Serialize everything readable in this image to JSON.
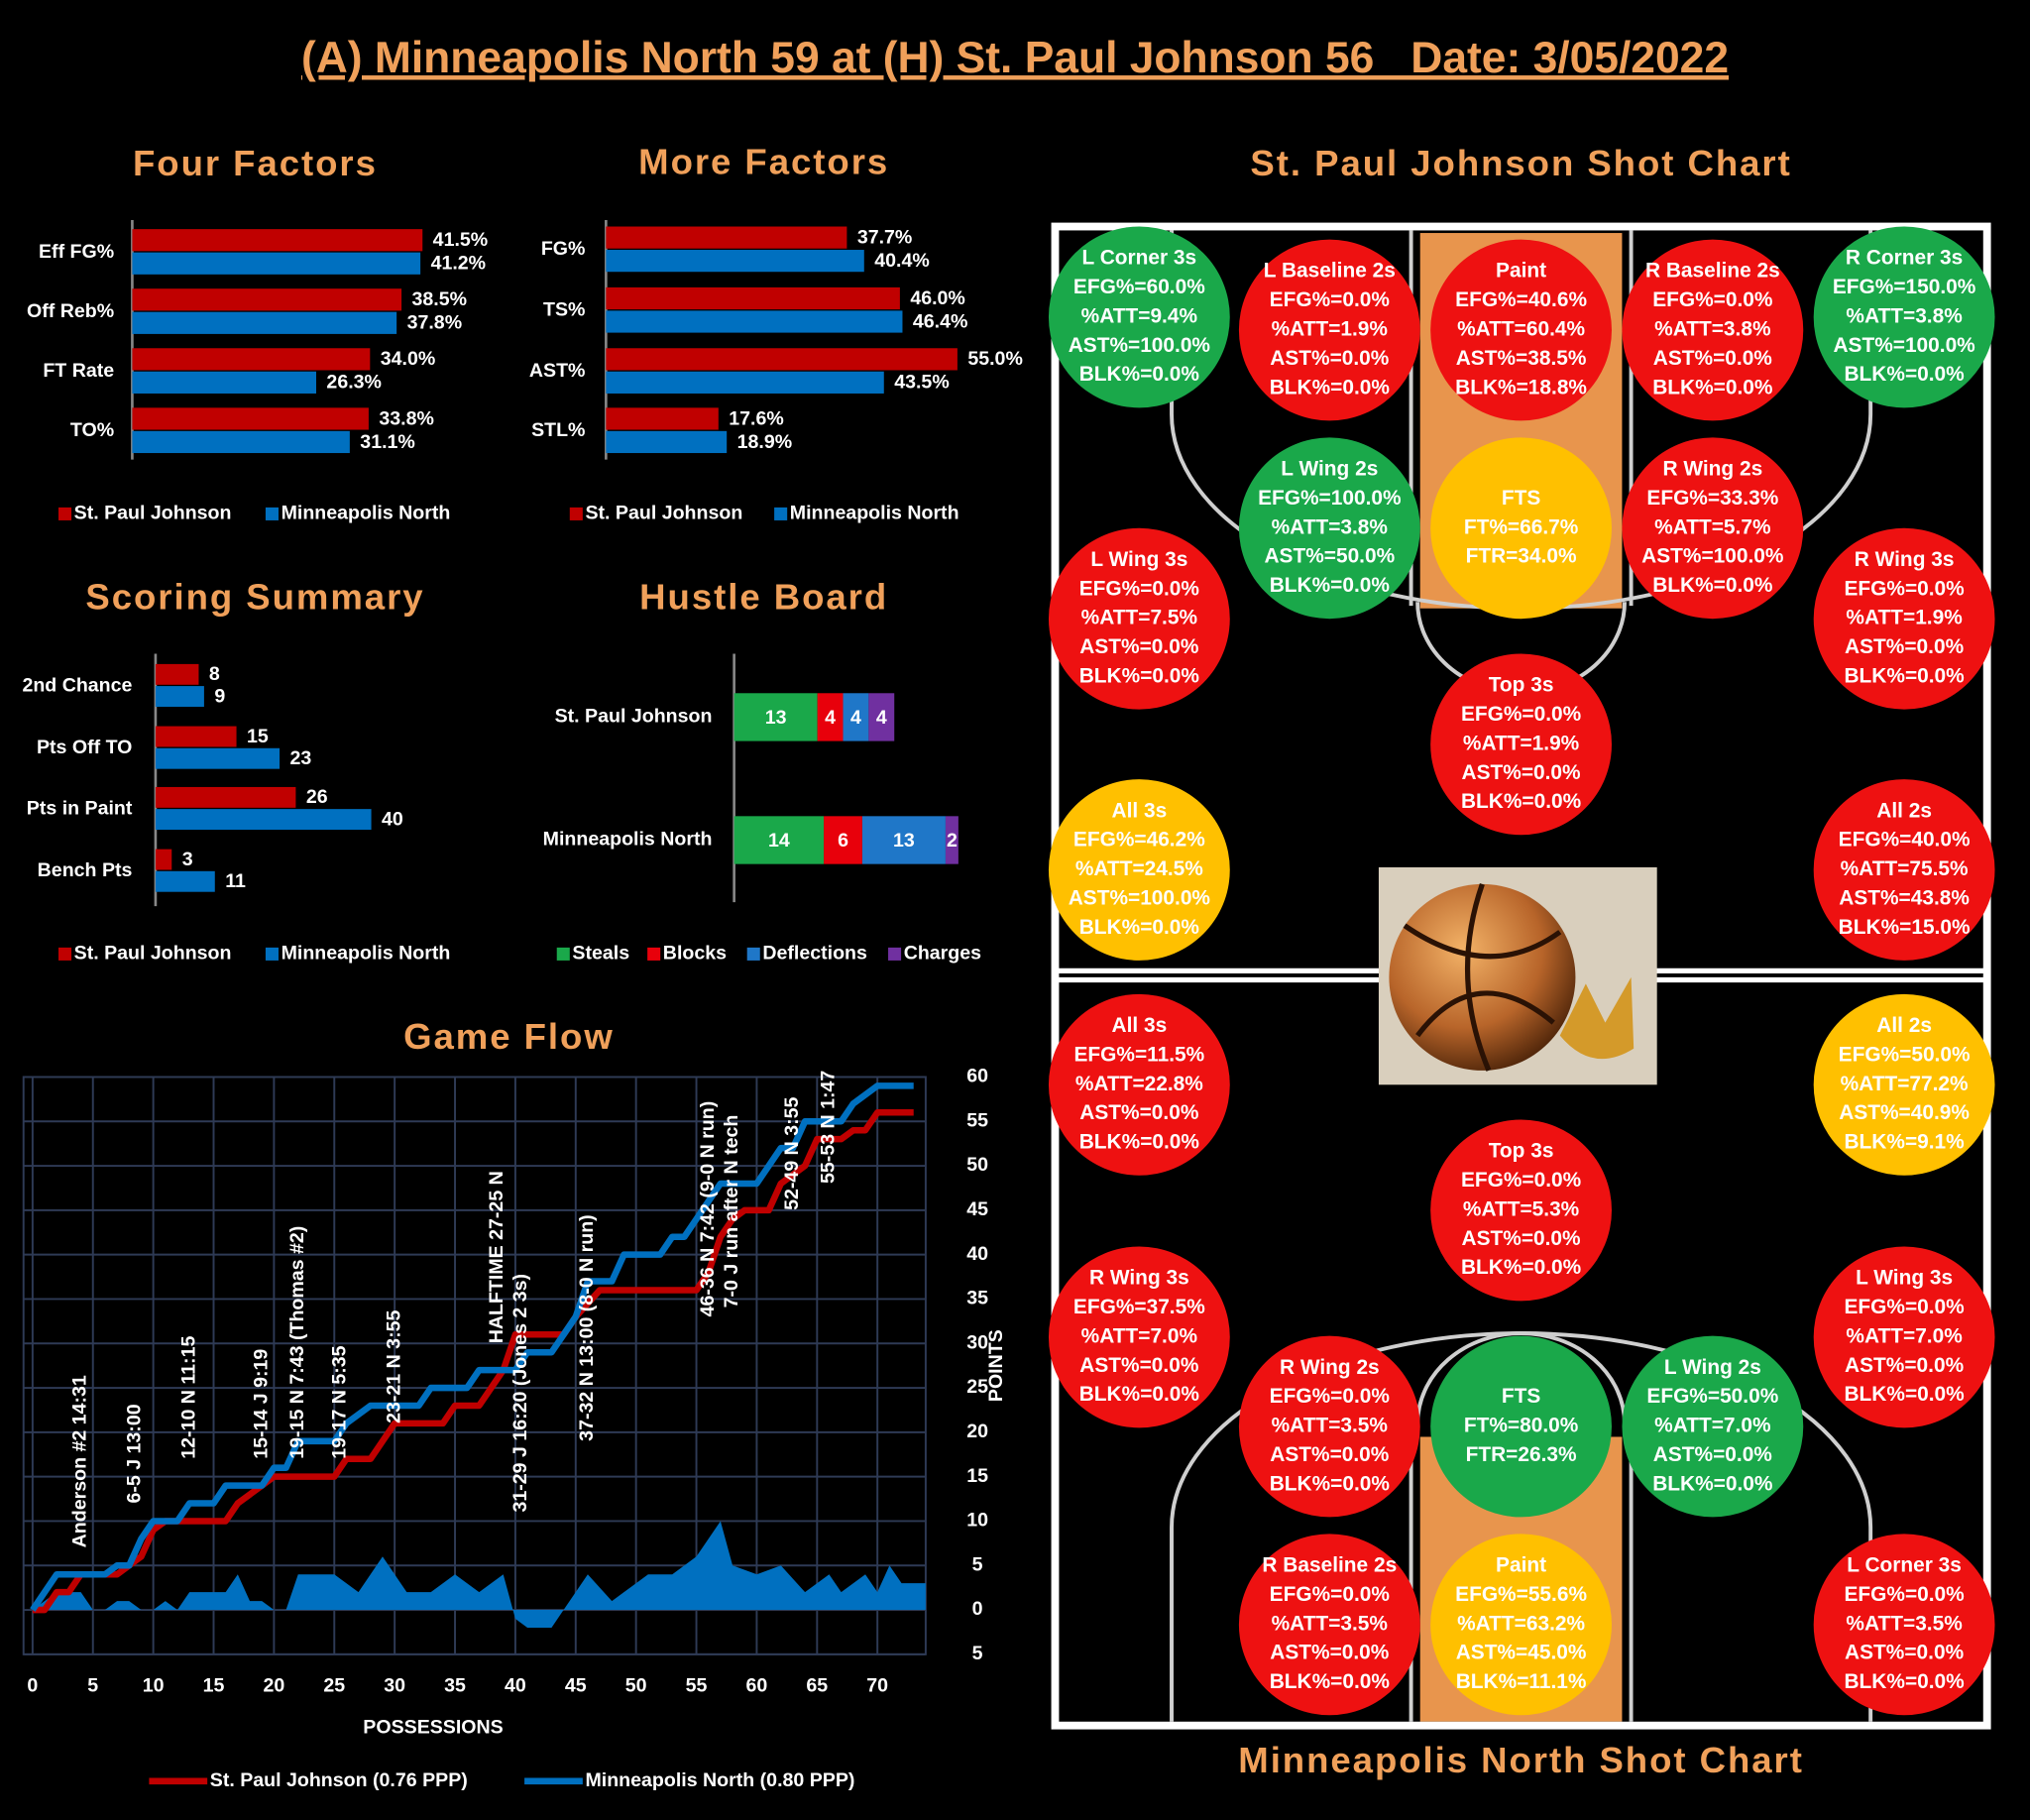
{
  "title": "(A) Minneapolis North 59 at (H) St. Paul Johnson 56   Date: 3/05/2022",
  "chart_data": [
    {
      "type": "bar",
      "orientation": "horizontal",
      "title": "Four Factors",
      "categories": [
        "Eff FG%",
        "Off Reb%",
        "FT Rate",
        "TO%"
      ],
      "xlim": [
        0,
        57
      ],
      "series": [
        {
          "name": "St. Paul Johnson",
          "color": "#c00000",
          "values": [
            41.5,
            38.5,
            34.0,
            33.8
          ],
          "value_labels": [
            "41.5%",
            "38.5%",
            "34.0%",
            "33.8%"
          ]
        },
        {
          "name": "Minneapolis North",
          "color": "#0070c0",
          "values": [
            41.2,
            37.8,
            26.3,
            31.1
          ],
          "value_labels": [
            "41.2%",
            "37.8%",
            "26.3%",
            "31.1%"
          ]
        }
      ]
    },
    {
      "type": "bar",
      "orientation": "horizontal",
      "title": "More Factors",
      "categories": [
        "FG%",
        "TS%",
        "AST%",
        "STL%"
      ],
      "xlim": [
        0,
        63
      ],
      "series": [
        {
          "name": "St. Paul Johnson",
          "color": "#c00000",
          "values": [
            37.7,
            46.0,
            55.0,
            17.6
          ],
          "value_labels": [
            "37.7%",
            "46.0%",
            "55.0%",
            "17.6%"
          ]
        },
        {
          "name": "Minneapolis North",
          "color": "#0070c0",
          "values": [
            40.4,
            46.4,
            43.5,
            18.9
          ],
          "value_labels": [
            "40.4%",
            "46.4%",
            "43.5%",
            "18.9%"
          ]
        }
      ]
    },
    {
      "type": "bar",
      "orientation": "horizontal",
      "title": "Scoring Summary",
      "categories": [
        "2nd Chance",
        "Pts Off TO",
        "Pts in Paint",
        "Bench Pts"
      ],
      "xlim": [
        0,
        60
      ],
      "series": [
        {
          "name": "St. Paul Johnson",
          "color": "#c00000",
          "values": [
            8,
            15,
            26,
            3
          ]
        },
        {
          "name": "Minneapolis North",
          "color": "#0070c0",
          "values": [
            9,
            23,
            40,
            11
          ]
        }
      ]
    },
    {
      "type": "stacked_bar",
      "orientation": "horizontal",
      "title": "Hustle Board",
      "categories": [
        "St. Paul Johnson",
        "Minneapolis North"
      ],
      "xlim": [
        0,
        40
      ],
      "series": [
        {
          "name": "Steals",
          "color": "#1aa84a",
          "values": [
            13,
            14
          ]
        },
        {
          "name": "Blocks",
          "color": "#e8000b",
          "values": [
            4,
            6
          ]
        },
        {
          "name": "Deflections",
          "color": "#1f77c8",
          "values": [
            4,
            13
          ]
        },
        {
          "name": "Charges",
          "color": "#7030a0",
          "values": [
            4,
            2
          ]
        }
      ]
    },
    {
      "type": "line",
      "title": "Game Flow",
      "xlabel": "POSSESSIONS",
      "ylabel": "POINTS",
      "xlim": [
        -0.75,
        74
      ],
      "ylim": [
        -5,
        60
      ],
      "xticks": [
        0,
        5,
        10,
        15,
        20,
        25,
        30,
        35,
        40,
        45,
        50,
        55,
        60,
        65,
        70
      ],
      "yticks": [
        {
          "value": -5,
          "label": "5"
        },
        0,
        5,
        10,
        15,
        20,
        25,
        30,
        35,
        40,
        45,
        50,
        55,
        60
      ],
      "grid": true,
      "series": [
        {
          "name": "St. Paul Johnson (0.76 PPP)",
          "color": "#c00000",
          "x": [
            0,
            1,
            2,
            3,
            4,
            6,
            7,
            8,
            9,
            10,
            11,
            16,
            17,
            18,
            19,
            20,
            25,
            26,
            28,
            29,
            30,
            34,
            35,
            37,
            38,
            39,
            40,
            44,
            45,
            47,
            55,
            56,
            57,
            58,
            59,
            61,
            62,
            63,
            64,
            65,
            67,
            68,
            69,
            70,
            73
          ],
          "values": [
            0,
            0,
            2,
            2,
            4,
            4,
            4,
            5,
            6,
            9,
            10,
            10,
            12,
            13,
            14,
            15,
            15,
            17,
            17,
            19,
            21,
            21,
            23,
            23,
            25,
            27,
            31,
            31,
            33,
            36,
            36,
            38,
            42,
            44,
            45,
            45,
            48,
            49,
            50,
            53,
            53,
            54,
            54,
            56,
            56
          ]
        },
        {
          "name": "Minneapolis North (0.80 PPP)",
          "color": "#0070c0",
          "x": [
            0,
            1,
            2,
            6,
            7,
            8,
            9,
            10,
            12,
            13,
            15,
            16,
            19,
            20,
            21,
            22,
            25,
            26,
            28,
            32,
            33,
            36,
            37,
            40,
            41,
            43,
            45,
            46,
            48,
            49,
            52,
            53,
            54,
            55,
            56,
            57,
            60,
            61,
            62,
            63,
            64,
            67,
            68,
            70,
            73
          ],
          "values": [
            0,
            2,
            4,
            4,
            5,
            5,
            8,
            10,
            10,
            12,
            12,
            14,
            14,
            16,
            16,
            19,
            19,
            21,
            23,
            23,
            25,
            25,
            27,
            27,
            29,
            29,
            33,
            37,
            37,
            40,
            40,
            42,
            42,
            44,
            46,
            48,
            48,
            50,
            52,
            52,
            55,
            55,
            57,
            59,
            59
          ]
        },
        {
          "style": "area",
          "color": "#0070c0",
          "x": [
            0,
            2,
            4,
            5,
            6,
            7,
            8,
            9,
            10,
            11,
            12,
            13,
            14,
            16,
            17,
            18,
            19,
            20,
            21,
            22,
            23,
            25,
            27,
            29,
            31,
            33,
            35,
            37,
            39,
            40,
            41,
            42,
            43,
            44,
            46,
            48,
            49,
            51,
            53,
            55,
            57,
            58,
            60,
            62,
            64,
            66,
            67,
            69,
            70,
            71,
            72,
            74
          ],
          "values": [
            0,
            2,
            2,
            0,
            0,
            1,
            1,
            0,
            0,
            1,
            0,
            2,
            2,
            2,
            4,
            1,
            1,
            0,
            0,
            4,
            4,
            4,
            2,
            6,
            2,
            2,
            4,
            2,
            4,
            -1,
            -2,
            -2,
            -2,
            0,
            4,
            1,
            2,
            4,
            4,
            6,
            10,
            5,
            4,
            5,
            2,
            4,
            2,
            4,
            2,
            5,
            3,
            3
          ]
        }
      ],
      "annotations": [
        {
          "text": "Anderson #2 14:31",
          "x": 4,
          "y": 7
        },
        {
          "text": "6-5 J 13:00",
          "x": 8.5,
          "y": 12
        },
        {
          "text": "12-10 N 11:15",
          "x": 13,
          "y": 17
        },
        {
          "text": "15-14 J 9:19",
          "x": 19,
          "y": 17
        },
        {
          "text": "19-15 N 7:43 (Thomas #2)",
          "x": 22,
          "y": 17
        },
        {
          "text": "19-17 N 5:35",
          "x": 25.5,
          "y": 17
        },
        {
          "text": "23-21 N 3:55",
          "x": 30,
          "y": 21
        },
        {
          "text": "HALFTIME 27-25 N",
          "x": 38.5,
          "y": 30
        },
        {
          "text": "31-29 J 16:20 (Jones 2 3s)",
          "x": 40.5,
          "y": 11
        },
        {
          "text": "37-32 N 13:00 (8-0 N run)",
          "x": 46,
          "y": 19
        },
        {
          "text": "46-36 N 7:42 (9-0 N run)",
          "x": 56,
          "y": 33
        },
        {
          "text": "7-0 J run after N tech",
          "x": 58,
          "y": 34
        },
        {
          "text": "52-49 N 3:55",
          "x": 63,
          "y": 45
        },
        {
          "text": "55-53 N 1:47",
          "x": 66,
          "y": 48
        }
      ]
    }
  ],
  "shot_charts": [
    {
      "title": "St. Paul Johnson Shot Chart",
      "zones": [
        {
          "name": "L Corner 3s",
          "color": "#1aa84a",
          "stats": [
            "EFG%=60.0%",
            "%ATT=9.4%",
            "AST%=100.0%",
            "BLK%=0.0%"
          ]
        },
        {
          "name": "L Baseline 2s",
          "color": "#ee1111",
          "stats": [
            "EFG%=0.0%",
            "%ATT=1.9%",
            "AST%=0.0%",
            "BLK%=0.0%"
          ]
        },
        {
          "name": "Paint",
          "color": "#ee1111",
          "stats": [
            "EFG%=40.6%",
            "%ATT=60.4%",
            "AST%=38.5%",
            "BLK%=18.8%"
          ]
        },
        {
          "name": "R Baseline 2s",
          "color": "#ee1111",
          "stats": [
            "EFG%=0.0%",
            "%ATT=3.8%",
            "AST%=0.0%",
            "BLK%=0.0%"
          ]
        },
        {
          "name": "R Corner 3s",
          "color": "#1aa84a",
          "stats": [
            "EFG%=150.0%",
            "%ATT=3.8%",
            "AST%=100.0%",
            "BLK%=0.0%"
          ]
        },
        {
          "name": "L Wing 2s",
          "color": "#1aa84a",
          "stats": [
            "EFG%=100.0%",
            "%ATT=3.8%",
            "AST%=50.0%",
            "BLK%=0.0%"
          ]
        },
        {
          "name": "FTS",
          "color": "#ffc000",
          "stats": [
            "FT%=66.7%",
            "FTR=34.0%"
          ]
        },
        {
          "name": "R Wing 2s",
          "color": "#ee1111",
          "stats": [
            "EFG%=33.3%",
            "%ATT=5.7%",
            "AST%=100.0%",
            "BLK%=0.0%"
          ]
        },
        {
          "name": "L Wing 3s",
          "color": "#ee1111",
          "stats": [
            "EFG%=0.0%",
            "%ATT=7.5%",
            "AST%=0.0%",
            "BLK%=0.0%"
          ]
        },
        {
          "name": "R Wing 3s",
          "color": "#ee1111",
          "stats": [
            "EFG%=0.0%",
            "%ATT=1.9%",
            "AST%=0.0%",
            "BLK%=0.0%"
          ]
        },
        {
          "name": "Top 3s",
          "color": "#ee1111",
          "stats": [
            "EFG%=0.0%",
            "%ATT=1.9%",
            "AST%=0.0%",
            "BLK%=0.0%"
          ]
        },
        {
          "name": "All 3s",
          "color": "#ffc000",
          "stats": [
            "EFG%=46.2%",
            "%ATT=24.5%",
            "AST%=100.0%",
            "BLK%=0.0%"
          ]
        },
        {
          "name": "All 2s",
          "color": "#ee1111",
          "stats": [
            "EFG%=40.0%",
            "%ATT=75.5%",
            "AST%=43.8%",
            "BLK%=15.0%"
          ]
        }
      ]
    },
    {
      "title": "Minneapolis North Shot Chart",
      "zones": [
        {
          "name": "All 3s",
          "color": "#ee1111",
          "stats": [
            "EFG%=11.5%",
            "%ATT=22.8%",
            "AST%=0.0%",
            "BLK%=0.0%"
          ]
        },
        {
          "name": "All 2s",
          "color": "#ffc000",
          "stats": [
            "EFG%=50.0%",
            "%ATT=77.2%",
            "AST%=40.9%",
            "BLK%=9.1%"
          ]
        },
        {
          "name": "Top 3s",
          "color": "#ee1111",
          "stats": [
            "EFG%=0.0%",
            "%ATT=5.3%",
            "AST%=0.0%",
            "BLK%=0.0%"
          ]
        },
        {
          "name": "R Wing 3s",
          "color": "#ee1111",
          "stats": [
            "EFG%=37.5%",
            "%ATT=7.0%",
            "AST%=0.0%",
            "BLK%=0.0%"
          ]
        },
        {
          "name": "L Wing 3s",
          "color": "#ee1111",
          "stats": [
            "EFG%=0.0%",
            "%ATT=7.0%",
            "AST%=0.0%",
            "BLK%=0.0%"
          ]
        },
        {
          "name": "R Wing 2s",
          "color": "#ee1111",
          "stats": [
            "EFG%=0.0%",
            "%ATT=3.5%",
            "AST%=0.0%",
            "BLK%=0.0%"
          ]
        },
        {
          "name": "FTS",
          "color": "#1aa84a",
          "stats": [
            "FT%=80.0%",
            "FTR=26.3%"
          ]
        },
        {
          "name": "L Wing 2s",
          "color": "#1aa84a",
          "stats": [
            "EFG%=50.0%",
            "%ATT=7.0%",
            "AST%=0.0%",
            "BLK%=0.0%"
          ]
        },
        {
          "name": "R Baseline 2s",
          "color": "#ee1111",
          "stats": [
            "EFG%=0.0%",
            "%ATT=3.5%",
            "AST%=0.0%",
            "BLK%=0.0%"
          ]
        },
        {
          "name": "Paint",
          "color": "#ffc000",
          "stats": [
            "EFG%=55.6%",
            "%ATT=63.2%",
            "AST%=45.0%",
            "BLK%=11.1%"
          ]
        },
        {
          "name": "L Corner 3s",
          "color": "#ee1111",
          "stats": [
            "EFG%=0.0%",
            "%ATT=3.5%",
            "AST%=0.0%",
            "BLK%=0.0%"
          ]
        }
      ]
    }
  ]
}
